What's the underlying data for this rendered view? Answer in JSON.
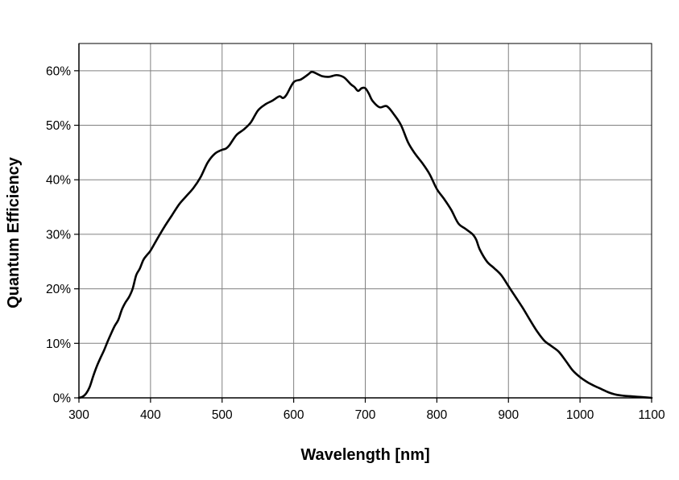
{
  "chart_data": {
    "type": "line",
    "title": "",
    "xlabel": "Wavelength [nm]",
    "ylabel": "Quantum Efficiency",
    "xlim": [
      300,
      1100
    ],
    "ylim": [
      0,
      0.65
    ],
    "xticks": [
      300,
      400,
      500,
      600,
      700,
      800,
      900,
      1000,
      1100
    ],
    "xtick_labels": [
      "300",
      "400",
      "500",
      "600",
      "700",
      "800",
      "900",
      "1000",
      "1100"
    ],
    "yticks": [
      0,
      0.1,
      0.2,
      0.3,
      0.4,
      0.5,
      0.6
    ],
    "ytick_labels": [
      "0%",
      "10%",
      "20%",
      "30%",
      "40%",
      "50%",
      "60%"
    ],
    "grid": true,
    "legend": "none",
    "line_color": "#000000",
    "series": [
      {
        "x": [
          300,
          305,
          310,
          315,
          320,
          325,
          330,
          335,
          340,
          345,
          350,
          355,
          360,
          365,
          370,
          375,
          380,
          385,
          390,
          395,
          400,
          410,
          420,
          430,
          440,
          450,
          460,
          470,
          480,
          490,
          500,
          505,
          510,
          520,
          530,
          540,
          550,
          560,
          570,
          580,
          585,
          590,
          600,
          610,
          620,
          625,
          630,
          640,
          650,
          660,
          670,
          680,
          685,
          690,
          695,
          700,
          705,
          710,
          720,
          730,
          740,
          750,
          760,
          770,
          780,
          790,
          800,
          810,
          820,
          830,
          840,
          850,
          855,
          860,
          870,
          880,
          890,
          900,
          910,
          920,
          930,
          940,
          950,
          960,
          970,
          980,
          990,
          1000,
          1010,
          1020,
          1030,
          1040,
          1050,
          1060,
          1070,
          1080,
          1090,
          1100
        ],
        "y": [
          0.0,
          0.002,
          0.008,
          0.02,
          0.04,
          0.058,
          0.073,
          0.087,
          0.103,
          0.118,
          0.132,
          0.143,
          0.162,
          0.175,
          0.185,
          0.2,
          0.225,
          0.237,
          0.253,
          0.262,
          0.27,
          0.293,
          0.315,
          0.335,
          0.355,
          0.37,
          0.385,
          0.405,
          0.432,
          0.448,
          0.455,
          0.457,
          0.463,
          0.482,
          0.492,
          0.505,
          0.527,
          0.538,
          0.545,
          0.553,
          0.55,
          0.556,
          0.579,
          0.584,
          0.593,
          0.598,
          0.596,
          0.59,
          0.589,
          0.592,
          0.588,
          0.575,
          0.57,
          0.563,
          0.568,
          0.568,
          0.558,
          0.545,
          0.533,
          0.535,
          0.52,
          0.5,
          0.468,
          0.447,
          0.43,
          0.41,
          0.383,
          0.365,
          0.345,
          0.32,
          0.31,
          0.3,
          0.29,
          0.272,
          0.25,
          0.238,
          0.225,
          0.205,
          0.185,
          0.165,
          0.143,
          0.122,
          0.105,
          0.095,
          0.085,
          0.068,
          0.05,
          0.038,
          0.029,
          0.022,
          0.016,
          0.01,
          0.006,
          0.004,
          0.003,
          0.002,
          0.001,
          0.0
        ]
      }
    ]
  }
}
